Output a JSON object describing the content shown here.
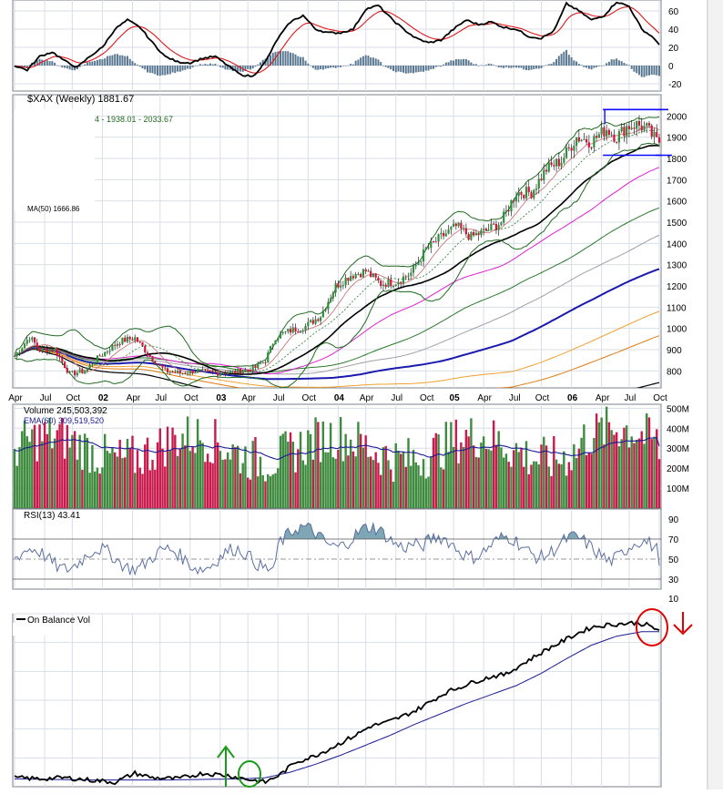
{
  "colors": {
    "panel_bg": "#ffffff",
    "grid": "#d9dee6",
    "frame": "#7a7f87",
    "macd_line": "#000000",
    "macd_signal": "#e01818",
    "macd_hist": "#5a7891",
    "up_bar": "#2f8f3a",
    "down_bar": "#d4133b",
    "bb_band": "#1f6b1f",
    "ema_volume": "#1b1b96",
    "rsi_fill": "#7ea6b4",
    "rsi_line": "#5b6fa0",
    "obv_line": "#000000",
    "obv_ma": "#1b1b96",
    "box_line": "#0a0aff",
    "annotation_red": "#e00000",
    "annotation_green": "#1a9a1a",
    "volume_up": "#3e8a3e",
    "volume_down": "#c81a4c"
  },
  "chart_data": {
    "type": "stock_chart_weekly",
    "symbol_label": "$XAX (Weekly) 1881.67",
    "overlay_legend_partial": "4 - 1938.01 - 2033.67",
    "overlay_legend_bottom": "MA(50) 1666.86",
    "period_start": "2001-04",
    "period_end": "2006-10",
    "x_ticks": [
      "Apr",
      "Jul",
      "Oct",
      "02",
      "Apr",
      "Jul",
      "Oct",
      "03",
      "Apr",
      "Jul",
      "Oct",
      "04",
      "Apr",
      "Jul",
      "Oct",
      "05",
      "Apr",
      "Jul",
      "Oct",
      "06",
      "Apr",
      "Jul",
      "Oct"
    ],
    "price": {
      "ylim": [
        720,
        2100
      ],
      "y_ticks": [
        "2000",
        "1900",
        "1800",
        "1700",
        "1600",
        "1500",
        "1400",
        "1300",
        "1200",
        "1100",
        "1000",
        "900",
        "800"
      ],
      "y_tick_values": [
        2000,
        1900,
        1800,
        1700,
        1600,
        1500,
        1400,
        1300,
        1200,
        1100,
        1000,
        900,
        800
      ],
      "close_anchors": [
        [
          0,
          870
        ],
        [
          6,
          960
        ],
        [
          10,
          900
        ],
        [
          16,
          900
        ],
        [
          22,
          785
        ],
        [
          28,
          800
        ],
        [
          34,
          870
        ],
        [
          42,
          940
        ],
        [
          48,
          955
        ],
        [
          54,
          870
        ],
        [
          60,
          800
        ],
        [
          66,
          790
        ],
        [
          72,
          800
        ],
        [
          80,
          790
        ],
        [
          88,
          795
        ],
        [
          96,
          815
        ],
        [
          100,
          850
        ],
        [
          104,
          960
        ],
        [
          110,
          990
        ],
        [
          116,
          1010
        ],
        [
          122,
          1060
        ],
        [
          128,
          1200
        ],
        [
          134,
          1250
        ],
        [
          140,
          1270
        ],
        [
          146,
          1210
        ],
        [
          152,
          1220
        ],
        [
          158,
          1260
        ],
        [
          164,
          1370
        ],
        [
          170,
          1430
        ],
        [
          176,
          1480
        ],
        [
          182,
          1430
        ],
        [
          188,
          1460
        ],
        [
          194,
          1500
        ],
        [
          200,
          1640
        ],
        [
          206,
          1640
        ],
        [
          212,
          1750
        ],
        [
          218,
          1790
        ],
        [
          224,
          1900
        ],
        [
          230,
          1880
        ],
        [
          236,
          1940
        ],
        [
          240,
          1900
        ],
        [
          244,
          1950
        ],
        [
          248,
          1960
        ],
        [
          252,
          1940
        ],
        [
          256,
          1880
        ]
      ],
      "resistance_box": {
        "top": 2030,
        "bottom": 1815,
        "start_week": 236,
        "end_week": 256
      }
    },
    "macd": {
      "y_ticks": [
        "60",
        "40",
        "20",
        "0",
        "-20"
      ],
      "y_tick_values": [
        60,
        40,
        20,
        0,
        -20
      ],
      "ylim": [
        -28,
        72
      ],
      "line_anchors": [
        [
          0,
          0
        ],
        [
          5,
          -5
        ],
        [
          10,
          10
        ],
        [
          15,
          15
        ],
        [
          20,
          5
        ],
        [
          25,
          -2
        ],
        [
          30,
          10
        ],
        [
          35,
          20
        ],
        [
          40,
          40
        ],
        [
          45,
          50
        ],
        [
          50,
          42
        ],
        [
          55,
          25
        ],
        [
          60,
          10
        ],
        [
          65,
          4
        ],
        [
          70,
          3
        ],
        [
          75,
          8
        ],
        [
          80,
          10
        ],
        [
          85,
          0
        ],
        [
          90,
          -10
        ],
        [
          95,
          -12
        ],
        [
          100,
          4
        ],
        [
          105,
          30
        ],
        [
          110,
          48
        ],
        [
          115,
          55
        ],
        [
          120,
          40
        ],
        [
          125,
          36
        ],
        [
          130,
          36
        ],
        [
          135,
          40
        ],
        [
          140,
          62
        ],
        [
          145,
          66
        ],
        [
          150,
          52
        ],
        [
          155,
          40
        ],
        [
          160,
          30
        ],
        [
          165,
          25
        ],
        [
          170,
          28
        ],
        [
          175,
          40
        ],
        [
          180,
          50
        ],
        [
          185,
          45
        ],
        [
          190,
          48
        ],
        [
          195,
          42
        ],
        [
          200,
          40
        ],
        [
          205,
          32
        ],
        [
          210,
          30
        ],
        [
          215,
          38
        ],
        [
          220,
          68
        ],
        [
          225,
          60
        ],
        [
          230,
          50
        ],
        [
          235,
          55
        ],
        [
          240,
          70
        ],
        [
          245,
          65
        ],
        [
          250,
          40
        ],
        [
          255,
          30
        ],
        [
          258,
          18
        ]
      ]
    },
    "volume": {
      "label": "Volume 245,503,392",
      "ema_label": "EMA(60) 309,519,520",
      "y_ticks": [
        "500M",
        "400M",
        "300M",
        "200M",
        "100M"
      ],
      "y_tick_values": [
        500,
        400,
        300,
        200,
        100
      ],
      "ylim": [
        0,
        520
      ],
      "last_value_m": 245.5,
      "ema_last_m": 309.5
    },
    "rsi": {
      "label": "RSI(13) 43.41",
      "y_ticks": [
        "90",
        "70",
        "50",
        "30"
      ],
      "y_tick_values": [
        90,
        70,
        50,
        30
      ],
      "ylim": [
        20,
        100
      ],
      "overbought": 70,
      "oversold": 30,
      "last_value": 43.41
    },
    "obv": {
      "label": "On Balance Vol",
      "y_ticks": [
        "10"
      ],
      "anchors": [
        [
          0,
          4
        ],
        [
          10,
          3
        ],
        [
          20,
          4
        ],
        [
          30,
          2
        ],
        [
          40,
          0
        ],
        [
          48,
          8
        ],
        [
          55,
          4
        ],
        [
          65,
          3
        ],
        [
          75,
          8
        ],
        [
          85,
          6
        ],
        [
          92,
          3
        ],
        [
          100,
          0
        ],
        [
          106,
          7
        ],
        [
          112,
          18
        ],
        [
          118,
          22
        ],
        [
          124,
          28
        ],
        [
          130,
          35
        ],
        [
          136,
          42
        ],
        [
          142,
          50
        ],
        [
          148,
          53
        ],
        [
          154,
          58
        ],
        [
          160,
          64
        ],
        [
          166,
          72
        ],
        [
          172,
          80
        ],
        [
          178,
          85
        ],
        [
          184,
          90
        ],
        [
          190,
          94
        ],
        [
          196,
          96
        ],
        [
          200,
          102
        ],
        [
          206,
          110
        ],
        [
          212,
          118
        ],
        [
          218,
          125
        ],
        [
          224,
          132
        ],
        [
          230,
          138
        ],
        [
          236,
          140
        ],
        [
          242,
          141
        ],
        [
          248,
          142
        ],
        [
          252,
          140
        ],
        [
          256,
          136
        ]
      ],
      "ma_anchors": [
        [
          0,
          3
        ],
        [
          30,
          2
        ],
        [
          60,
          2
        ],
        [
          90,
          3
        ],
        [
          100,
          4
        ],
        [
          110,
          9
        ],
        [
          120,
          16
        ],
        [
          130,
          24
        ],
        [
          140,
          33
        ],
        [
          150,
          42
        ],
        [
          160,
          52
        ],
        [
          170,
          61
        ],
        [
          180,
          70
        ],
        [
          190,
          78
        ],
        [
          200,
          86
        ],
        [
          210,
          97
        ],
        [
          220,
          110
        ],
        [
          230,
          122
        ],
        [
          240,
          130
        ],
        [
          250,
          134
        ],
        [
          256,
          134
        ]
      ],
      "ylim": [
        -4,
        150
      ]
    },
    "annotations": {
      "down_arrow_color": "red",
      "up_arrow_color": "green"
    }
  }
}
